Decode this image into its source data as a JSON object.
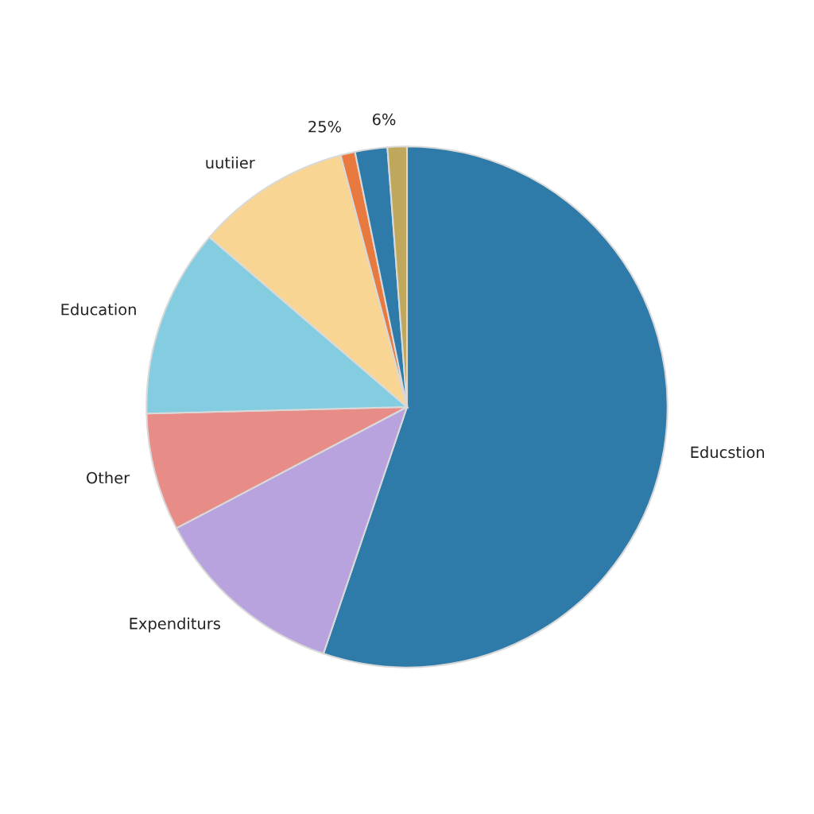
{
  "chart_data": {
    "type": "pie",
    "categories": [
      "Educstion",
      "Expenditurs",
      "Other",
      "Education",
      "uutiier",
      "25%",
      null,
      "6%"
    ],
    "values": [
      55.2,
      12.1,
      7.3,
      11.7,
      9.6,
      0.9,
      2.0,
      1.2
    ],
    "colors": [
      "#2e7aa8",
      "#b8a3de",
      "#e88c87",
      "#84cce0",
      "#f9d593",
      "#e8793f",
      "#2e7aa8",
      "#bfa85c"
    ]
  }
}
